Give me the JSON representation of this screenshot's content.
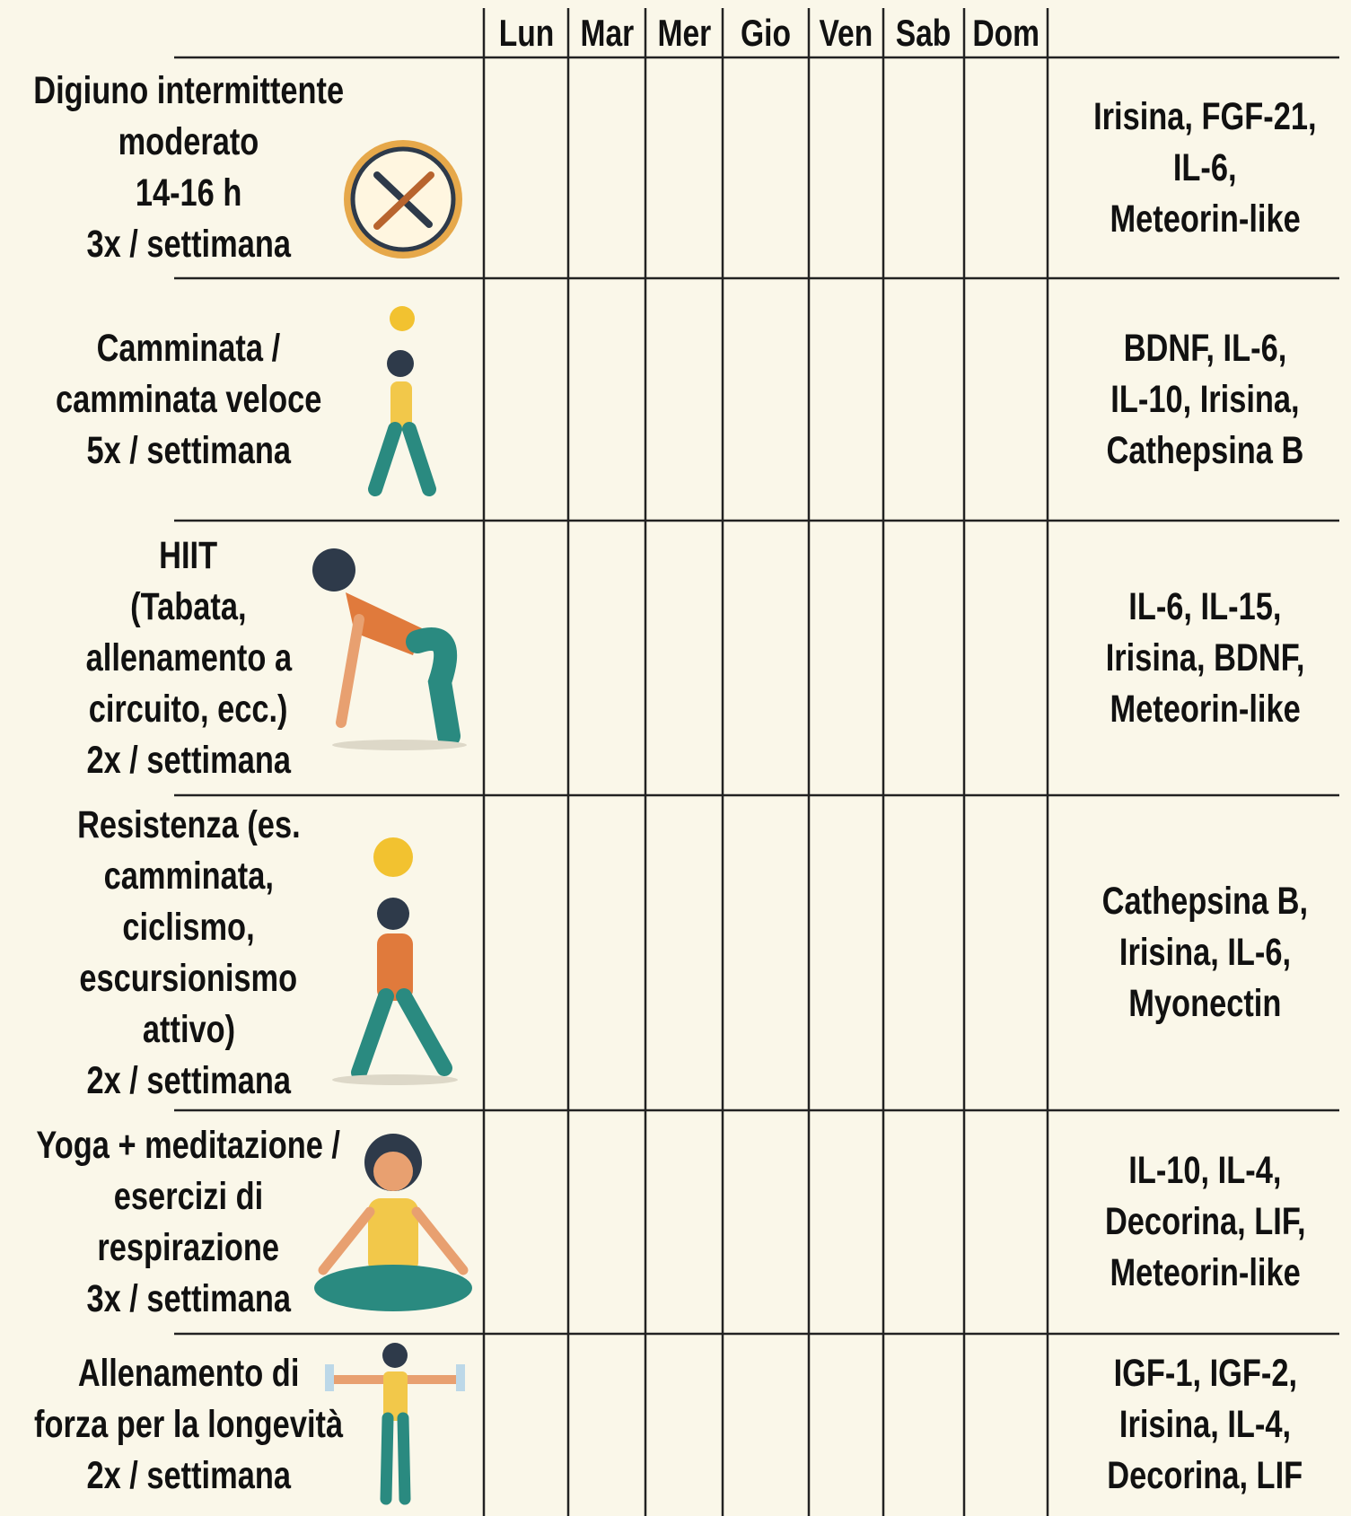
{
  "header": {
    "days": [
      "Lun",
      "Mar",
      "Mer",
      "Gio",
      "Ven",
      "Sab",
      "Dom"
    ]
  },
  "rows": [
    {
      "activity": [
        "Digiuno intermittente",
        "moderato",
        "14-16 h",
        "3x / settimana"
      ],
      "molecules": [
        "Irisina, FGF-21,",
        "IL-6,",
        "Meteorin-like"
      ]
    },
    {
      "activity": [
        "Camminata /",
        "camminata veloce",
        "5x / settimana"
      ],
      "molecules": [
        "BDNF, IL-6,",
        "IL-10, Irisina,",
        "Cathepsina B"
      ]
    },
    {
      "activity": [
        "HIIT",
        "(Tabata,",
        "allenamento a",
        "circuito, ecc.)",
        "2x / settimana"
      ],
      "molecules": [
        "IL-6, IL-15,",
        "Irisina, BDNF,",
        "Meteorin-like"
      ]
    },
    {
      "activity": [
        "Resistenza (es.",
        "camminata,",
        "ciclismo,",
        "escursionismo",
        "attivo)",
        "2x / settimana"
      ],
      "molecules": [
        "Cathepsina B,",
        "Irisina, IL-6,",
        "Myonectin"
      ]
    },
    {
      "activity": [
        "Yoga + meditazione /",
        "esercizi di",
        "respirazione",
        "3x / settimana"
      ],
      "molecules": [
        "IL-10, IL-4,",
        "Decorina, LIF,",
        "Meteorin-like"
      ]
    },
    {
      "activity": [
        "Allenamento di",
        "forza per la longevità",
        "2x / settimana"
      ],
      "molecules": [
        "IGF-1, IGF-2,",
        "Irisina, IL-4,",
        "Decorina, LIF"
      ]
    }
  ]
}
